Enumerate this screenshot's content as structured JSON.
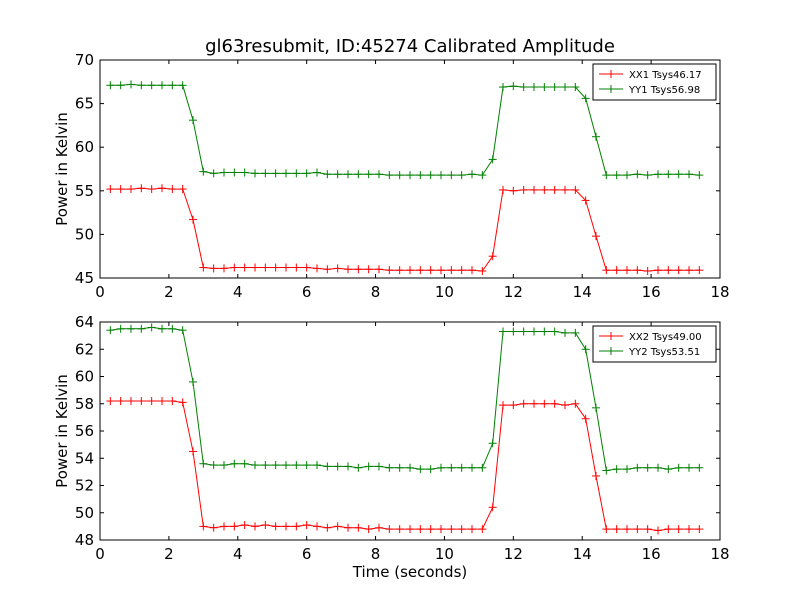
{
  "chart_data": [
    {
      "type": "line",
      "title": "gl63resubmit, ID:45274 Calibrated Amplitude",
      "xlabel": "",
      "ylabel": "Power in Kelvin",
      "xlim": [
        0,
        18
      ],
      "ylim": [
        45,
        70
      ],
      "xticks": [
        0,
        2,
        4,
        6,
        8,
        10,
        12,
        14,
        16,
        18
      ],
      "yticks": [
        45,
        50,
        55,
        60,
        65,
        70
      ],
      "grid": false,
      "legend_position": "top-right",
      "x": [
        0.3,
        0.6,
        0.9,
        1.2,
        1.5,
        1.8,
        2.1,
        2.4,
        2.7,
        3.0,
        3.3,
        3.6,
        3.9,
        4.2,
        4.5,
        4.8,
        5.1,
        5.4,
        5.7,
        6.0,
        6.3,
        6.6,
        6.9,
        7.2,
        7.5,
        7.8,
        8.1,
        8.4,
        8.7,
        9.0,
        9.3,
        9.6,
        9.9,
        10.2,
        10.5,
        10.8,
        11.1,
        11.4,
        11.7,
        12.0,
        12.3,
        12.6,
        12.9,
        13.2,
        13.5,
        13.8,
        14.1,
        14.4,
        14.7,
        15.0,
        15.3,
        15.6,
        15.9,
        16.2,
        16.5,
        16.8,
        17.1,
        17.4
      ],
      "series": [
        {
          "name": "XX1 Tsys46.17",
          "color": "#ff0000",
          "values": [
            55.2,
            55.2,
            55.2,
            55.3,
            55.2,
            55.3,
            55.2,
            55.2,
            51.7,
            46.2,
            46.1,
            46.1,
            46.2,
            46.2,
            46.2,
            46.2,
            46.2,
            46.2,
            46.2,
            46.2,
            46.1,
            46.0,
            46.1,
            46.0,
            46.0,
            46.0,
            46.0,
            45.9,
            45.9,
            45.9,
            45.9,
            45.9,
            45.9,
            45.9,
            45.9,
            45.9,
            45.8,
            47.5,
            55.1,
            55.0,
            55.1,
            55.1,
            55.1,
            55.1,
            55.1,
            55.1,
            53.9,
            49.8,
            45.9,
            45.9,
            45.9,
            45.9,
            45.8,
            45.9,
            45.9,
            45.9,
            45.9,
            45.9
          ]
        },
        {
          "name": "YY1 Tsys56.98",
          "color": "#008000",
          "values": [
            67.1,
            67.1,
            67.2,
            67.1,
            67.1,
            67.1,
            67.1,
            67.1,
            63.1,
            57.2,
            57.0,
            57.1,
            57.1,
            57.1,
            57.0,
            57.0,
            57.0,
            57.0,
            57.0,
            57.0,
            57.1,
            56.9,
            56.9,
            56.9,
            56.9,
            56.9,
            56.9,
            56.8,
            56.8,
            56.8,
            56.8,
            56.8,
            56.8,
            56.8,
            56.8,
            56.9,
            56.8,
            58.6,
            66.9,
            67.0,
            66.9,
            66.9,
            66.9,
            66.9,
            66.9,
            66.9,
            65.6,
            61.2,
            56.8,
            56.8,
            56.8,
            56.9,
            56.8,
            56.9,
            56.9,
            56.9,
            56.9,
            56.8
          ]
        }
      ]
    },
    {
      "type": "line",
      "title": "",
      "xlabel": "Time (seconds)",
      "ylabel": "Power in Kelvin",
      "xlim": [
        0,
        18
      ],
      "ylim": [
        48,
        64
      ],
      "xticks": [
        0,
        2,
        4,
        6,
        8,
        10,
        12,
        14,
        16,
        18
      ],
      "yticks": [
        48,
        50,
        52,
        54,
        56,
        58,
        60,
        62,
        64
      ],
      "grid": false,
      "legend_position": "top-right",
      "x": [
        0.3,
        0.6,
        0.9,
        1.2,
        1.5,
        1.8,
        2.1,
        2.4,
        2.7,
        3.0,
        3.3,
        3.6,
        3.9,
        4.2,
        4.5,
        4.8,
        5.1,
        5.4,
        5.7,
        6.0,
        6.3,
        6.6,
        6.9,
        7.2,
        7.5,
        7.8,
        8.1,
        8.4,
        8.7,
        9.0,
        9.3,
        9.6,
        9.9,
        10.2,
        10.5,
        10.8,
        11.1,
        11.4,
        11.7,
        12.0,
        12.3,
        12.6,
        12.9,
        13.2,
        13.5,
        13.8,
        14.1,
        14.4,
        14.7,
        15.0,
        15.3,
        15.6,
        15.9,
        16.2,
        16.5,
        16.8,
        17.1,
        17.4
      ],
      "series": [
        {
          "name": "XX2 Tsys49.00",
          "color": "#ff0000",
          "values": [
            58.2,
            58.2,
            58.2,
            58.2,
            58.2,
            58.2,
            58.2,
            58.1,
            54.5,
            49.0,
            48.9,
            49.0,
            49.0,
            49.1,
            49.0,
            49.1,
            49.0,
            49.0,
            49.0,
            49.1,
            49.0,
            48.9,
            49.0,
            48.9,
            48.9,
            48.8,
            48.9,
            48.8,
            48.8,
            48.8,
            48.8,
            48.8,
            48.8,
            48.8,
            48.8,
            48.8,
            48.8,
            50.4,
            57.9,
            57.9,
            58.0,
            58.0,
            58.0,
            58.0,
            57.9,
            58.0,
            56.9,
            52.7,
            48.8,
            48.8,
            48.8,
            48.8,
            48.8,
            48.7,
            48.8,
            48.8,
            48.8,
            48.8
          ]
        },
        {
          "name": "YY2 Tsys53.51",
          "color": "#008000",
          "values": [
            63.4,
            63.5,
            63.5,
            63.5,
            63.6,
            63.5,
            63.5,
            63.4,
            59.6,
            53.6,
            53.5,
            53.5,
            53.6,
            53.6,
            53.5,
            53.5,
            53.5,
            53.5,
            53.5,
            53.5,
            53.5,
            53.4,
            53.4,
            53.4,
            53.3,
            53.4,
            53.4,
            53.3,
            53.3,
            53.3,
            53.2,
            53.2,
            53.3,
            53.3,
            53.3,
            53.3,
            53.3,
            55.1,
            63.3,
            63.3,
            63.3,
            63.3,
            63.3,
            63.3,
            63.2,
            63.2,
            62.0,
            57.7,
            53.1,
            53.2,
            53.2,
            53.3,
            53.3,
            53.3,
            53.2,
            53.3,
            53.3,
            53.3
          ]
        }
      ]
    }
  ]
}
